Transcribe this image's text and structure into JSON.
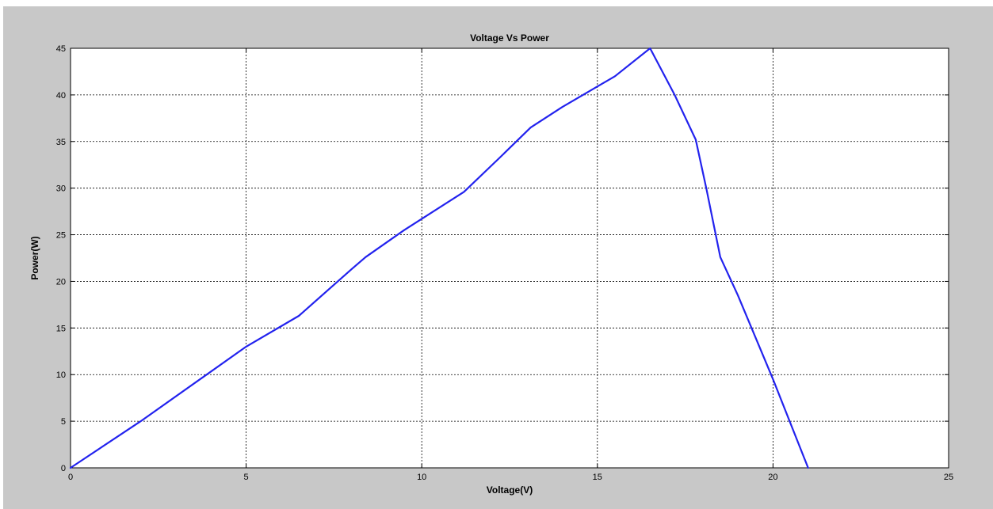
{
  "chart_data": {
    "type": "line",
    "title": "Voltage Vs Power",
    "xlabel": "Voltage(V)",
    "ylabel": "Power(W)",
    "xlim": [
      0,
      25
    ],
    "ylim": [
      0,
      45
    ],
    "xticks": [
      "0",
      "5",
      "10",
      "15",
      "20",
      "25"
    ],
    "yticks": [
      "0",
      "5",
      "10",
      "15",
      "20",
      "25",
      "30",
      "35",
      "40",
      "45"
    ],
    "grid": true,
    "line_color": "#2222ee",
    "series": [
      {
        "x": [
          0,
          2,
          5,
          6.5,
          8,
          8.4,
          9.5,
          11.2,
          12.2,
          13.1,
          14,
          15.5,
          16.5,
          17.2,
          17.8,
          18.1,
          18.5,
          19,
          20,
          21
        ],
        "y": [
          0,
          5,
          13,
          16.3,
          21.3,
          22.6,
          25.5,
          29.6,
          33.2,
          36.5,
          38.7,
          42,
          45,
          40,
          35.2,
          30,
          22.6,
          18.5,
          9.5,
          0
        ]
      }
    ]
  }
}
